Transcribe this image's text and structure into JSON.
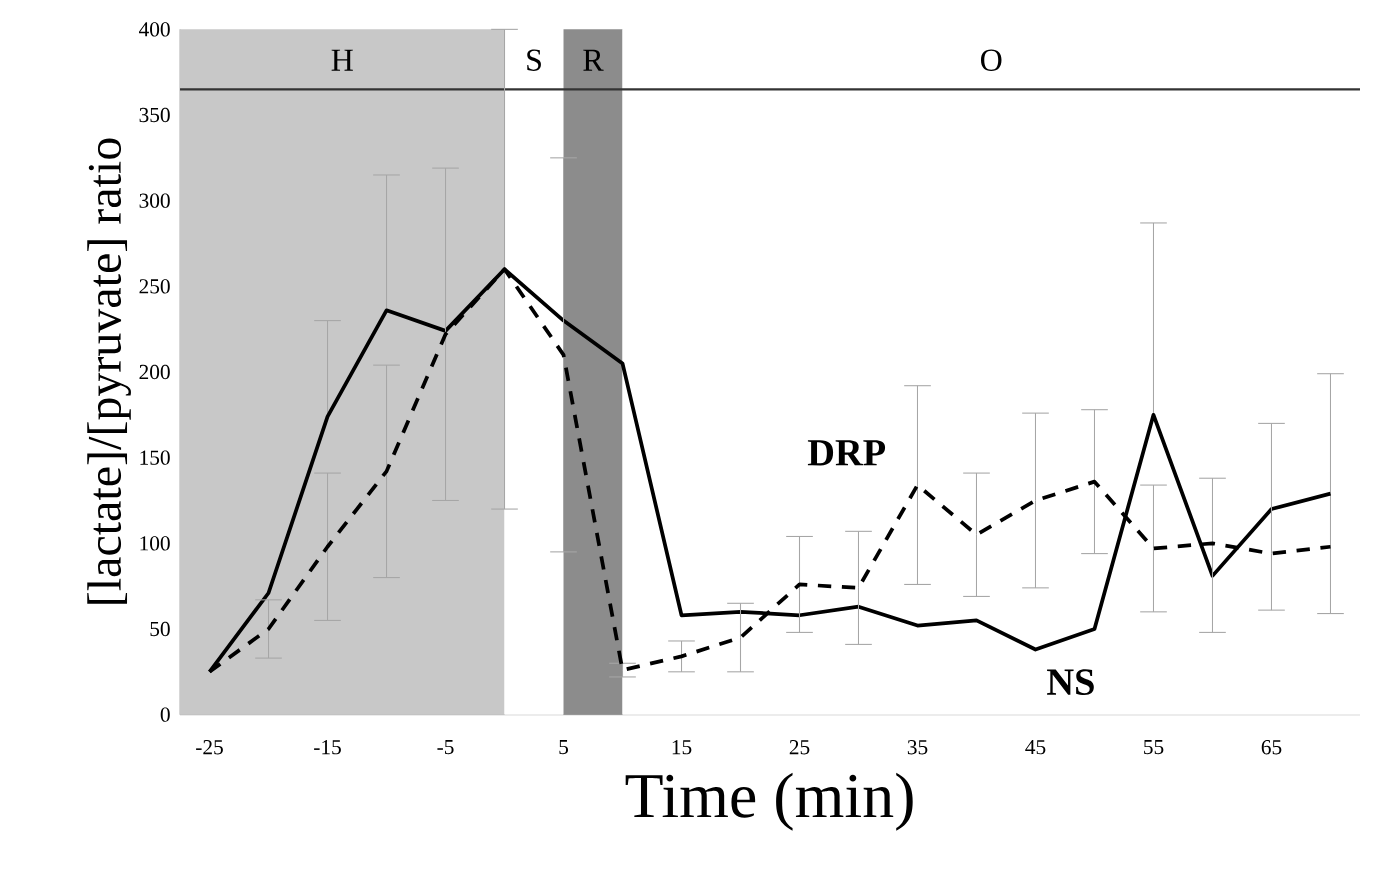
{
  "chart_data": {
    "type": "line",
    "xlabel": "Time (min)",
    "ylabel": "[lactate]/[pyruvate] ratio",
    "x": [
      -25,
      -20,
      -15,
      -10,
      -5,
      0,
      5,
      10,
      15,
      20,
      25,
      30,
      35,
      40,
      45,
      50,
      55,
      60,
      65,
      70
    ],
    "series": [
      {
        "name": "NS",
        "color": "#000000",
        "line_style": "solid",
        "values": [
          25,
          71,
          174,
          236,
          224,
          260,
          230,
          205,
          58,
          60,
          58,
          63,
          52,
          55,
          38,
          50,
          175,
          81,
          120,
          129
        ],
        "errors": [
          null,
          null,
          [
            174,
            230
          ],
          [
            236,
            315
          ],
          null,
          140,
          null,
          null,
          null,
          null,
          null,
          null,
          null,
          null,
          null,
          null,
          [
            175,
            287
          ],
          null,
          null,
          70
        ]
      },
      {
        "name": "DRP",
        "color": "#000000",
        "line_style": "dashed",
        "values": [
          25,
          50,
          98,
          142,
          222,
          260,
          210,
          26,
          34,
          45,
          76,
          74,
          134,
          105,
          125,
          136,
          97,
          100,
          94,
          98
        ],
        "errors": [
          null,
          17,
          [
            55,
            141
          ],
          [
            80,
            204
          ],
          97,
          null,
          115,
          4,
          9,
          20,
          28,
          33,
          58,
          36,
          51,
          42,
          37,
          [
            48,
            138
          ],
          [
            61,
            170
          ],
          null
        ]
      }
    ],
    "xlim": [
      -27.5,
      72.5
    ],
    "ylim": [
      0,
      400
    ],
    "xticks": [
      -25,
      -15,
      -5,
      5,
      15,
      25,
      35,
      45,
      55,
      65
    ],
    "yticks": [
      0,
      50,
      100,
      150,
      200,
      250,
      300,
      350,
      400
    ],
    "bands": [
      {
        "axis": "x",
        "from": -27.5,
        "to": 0,
        "label": "H",
        "color": "#c8c8c8"
      },
      {
        "axis": "x",
        "from": 0,
        "to": 5,
        "label": "S",
        "color": "#ffffff"
      },
      {
        "axis": "x",
        "from": 5,
        "to": 10,
        "label": "R",
        "color": "#8c8c8c"
      },
      {
        "axis": "x",
        "from": 10,
        "to": 72.5,
        "label": "O",
        "color": "#ffffff"
      }
    ],
    "ref_lines": [
      {
        "axis": "y",
        "value": 365,
        "color": "#333333"
      }
    ],
    "grid": false,
    "marker": "none"
  }
}
